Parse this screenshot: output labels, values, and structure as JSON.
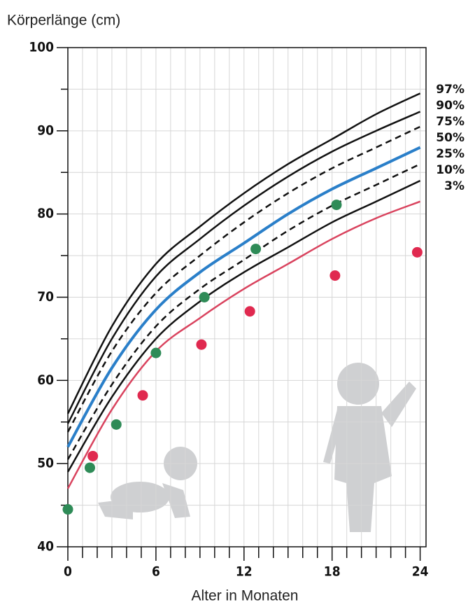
{
  "chart_data": {
    "type": "line",
    "y_label": "Körperlänge (cm)",
    "x_label": "Alter in Monaten",
    "x": [
      0,
      3,
      6,
      9,
      12,
      15,
      18,
      21,
      24
    ],
    "series": [
      {
        "name": "97%",
        "color": "#111111",
        "dashed": false,
        "values": [
          56,
          66.5,
          74,
          78.5,
          82.5,
          86,
          89,
          92,
          94.5
        ]
      },
      {
        "name": "90%",
        "color": "#111111",
        "dashed": false,
        "values": [
          54.8,
          65,
          72.5,
          77,
          81,
          84.5,
          87.5,
          90,
          92.3
        ]
      },
      {
        "name": "75%",
        "color": "#111111",
        "dashed": true,
        "values": [
          53.8,
          63.5,
          70.5,
          75,
          79,
          82.5,
          85.5,
          88,
          90.5
        ]
      },
      {
        "name": "50%",
        "color": "#2a7fc9",
        "dashed": false,
        "values": [
          52,
          61.5,
          68.5,
          73,
          76.5,
          80,
          83,
          85.5,
          88
        ]
      },
      {
        "name": "25%",
        "color": "#111111",
        "dashed": true,
        "values": [
          50.5,
          59.5,
          66.5,
          71,
          74.5,
          78,
          81,
          83.5,
          86
        ]
      },
      {
        "name": "10%",
        "color": "#111111",
        "dashed": false,
        "values": [
          49,
          58,
          65,
          69.5,
          73,
          76,
          79,
          81.5,
          84
        ]
      },
      {
        "name": "3%",
        "color": "#d9435e",
        "dashed": false,
        "values": [
          47,
          56.5,
          63.5,
          67.5,
          71,
          74,
          77,
          79.5,
          81.5
        ]
      }
    ],
    "points": [
      {
        "color": "#2e8b57",
        "x": [
          0,
          1.5,
          3.3,
          6,
          9.3,
          12.8,
          18.3
        ],
        "values": [
          44.5,
          49.5,
          54.7,
          63.3,
          70,
          75.8,
          81.1
        ]
      },
      {
        "color": "#e0294f",
        "x": [
          1.7,
          5.1,
          9.1,
          12.4,
          18.2,
          23.8
        ],
        "values": [
          50.9,
          58.2,
          64.3,
          68.3,
          72.6,
          75.4
        ]
      }
    ],
    "xlim": [
      0,
      24.4
    ],
    "ylim": [
      40,
      100
    ],
    "xticks": [
      0,
      {
        "value": 1,
        "label": null
      },
      {
        "value": 2,
        "label": null
      },
      {
        "value": 3,
        "label": null
      },
      {
        "value": 4,
        "label": null
      },
      {
        "value": 5,
        "label": null
      },
      6,
      {
        "value": 7,
        "label": null
      },
      {
        "value": 8,
        "label": null
      },
      {
        "value": 9,
        "label": null
      },
      {
        "value": 10,
        "label": null
      },
      {
        "value": 11,
        "label": null
      },
      12,
      {
        "value": 13,
        "label": null
      },
      {
        "value": 14,
        "label": null
      },
      {
        "value": 15,
        "label": null
      },
      {
        "value": 16,
        "label": null
      },
      {
        "value": 17,
        "label": null
      },
      18,
      {
        "value": 19,
        "label": null
      },
      {
        "value": 20,
        "label": null
      },
      {
        "value": 21,
        "label": null
      },
      {
        "value": 22,
        "label": null
      },
      {
        "value": 23,
        "label": null
      },
      24
    ],
    "yticks": [
      40,
      {
        "value": 45,
        "label": null
      },
      50,
      {
        "value": 55,
        "label": null
      },
      60,
      {
        "value": 65,
        "label": null
      },
      70,
      {
        "value": 75,
        "label": null
      },
      80,
      {
        "value": 85,
        "label": null
      },
      90,
      {
        "value": 95,
        "label": null
      },
      100
    ],
    "grid": true
  }
}
